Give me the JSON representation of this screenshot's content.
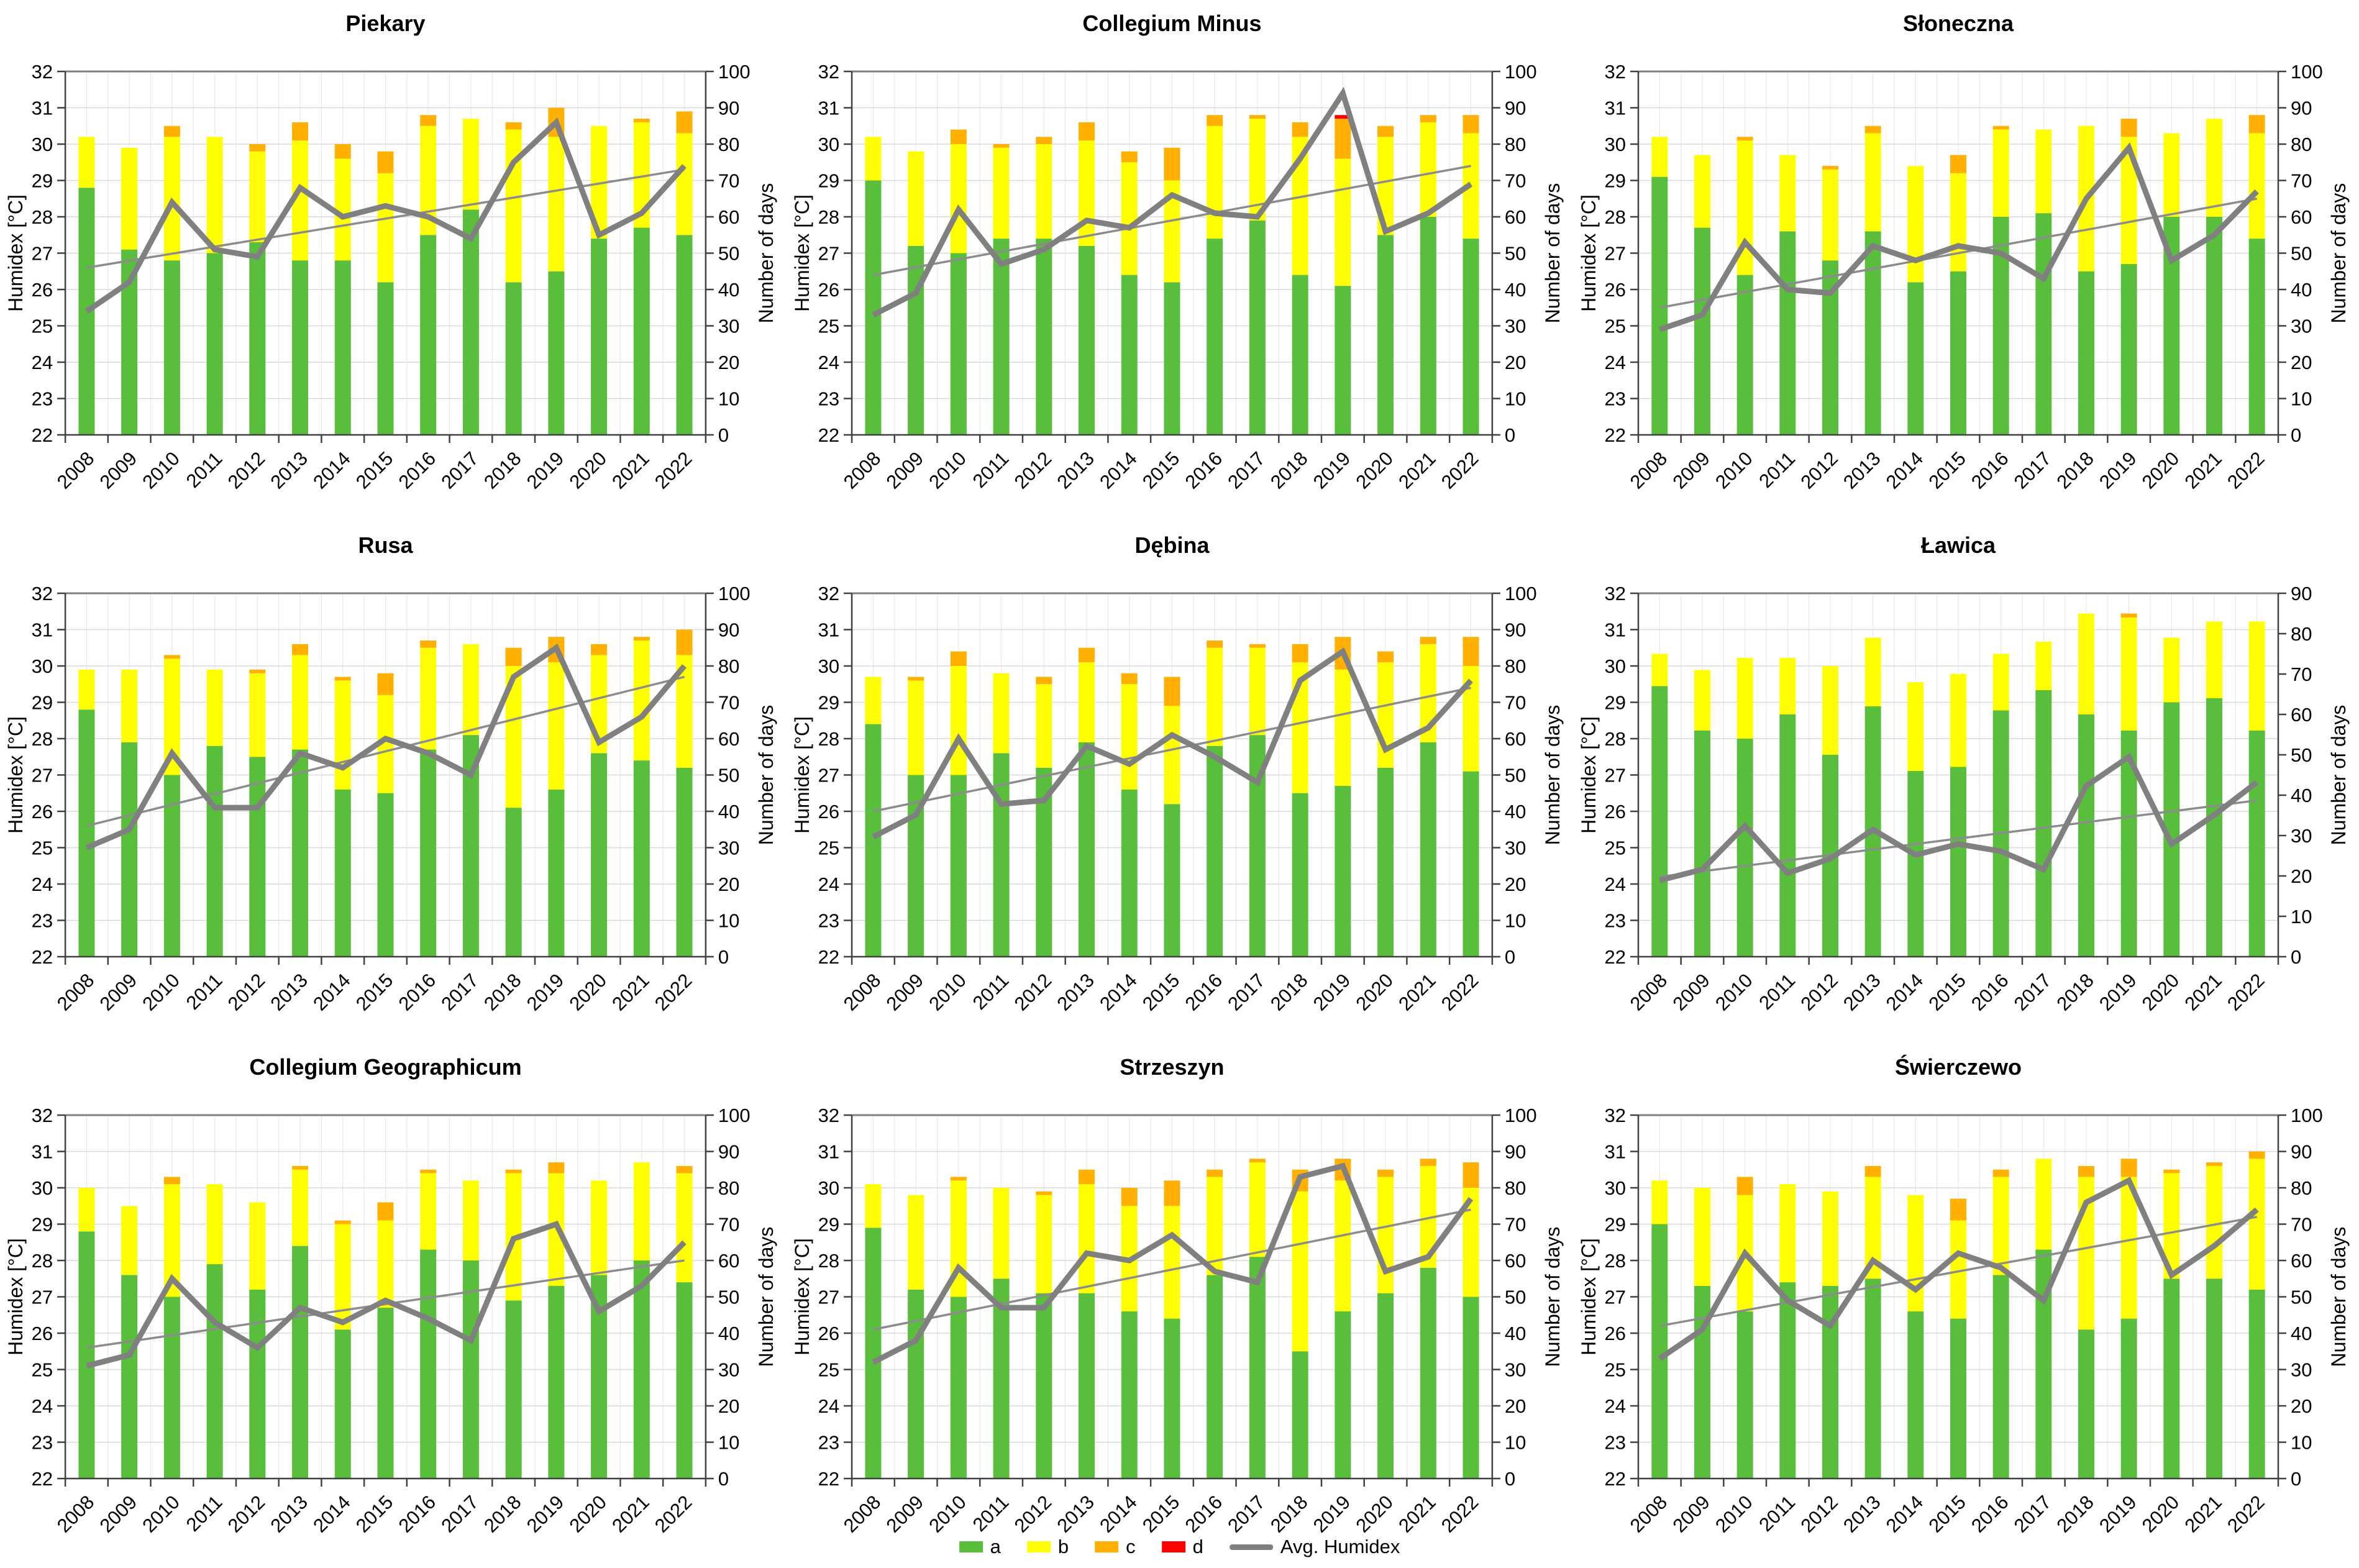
{
  "legend": {
    "items": [
      {
        "label": "a",
        "color": "#58be3c",
        "type": "box"
      },
      {
        "label": "b",
        "color": "#ffff00",
        "type": "box"
      },
      {
        "label": "c",
        "color": "#ffb000",
        "type": "box"
      },
      {
        "label": "d",
        "color": "#ff0000",
        "type": "box"
      },
      {
        "label": "Avg. Humidex",
        "color": "#808080",
        "type": "line"
      }
    ]
  },
  "colors": {
    "a": "#58be3c",
    "b": "#ffff00",
    "c": "#ffb000",
    "d": "#ff0000",
    "avg_line": "#808080",
    "trend_line": "#8c8c8c",
    "h_grid": "#d9d9d9",
    "v_grid": "#e8e8e8",
    "top_border": "#808080",
    "axis": "#404040",
    "text": "#000000"
  },
  "chart_data": [
    {
      "type": "bar",
      "title": "Piekary",
      "categories": [
        2008,
        2009,
        2010,
        2011,
        2012,
        2013,
        2014,
        2015,
        2016,
        2017,
        2018,
        2019,
        2020,
        2021,
        2022
      ],
      "xlabel": "",
      "ylabel_left": "Humidex [°C]",
      "ylabel_right": "Number of days",
      "ylim_left": [
        22,
        32
      ],
      "ylim_right": [
        0,
        100
      ],
      "grid": true,
      "series": [
        {
          "name": "a",
          "values": [
            68,
            51,
            48,
            50,
            53,
            48,
            48,
            42,
            55,
            62,
            42,
            45,
            54,
            57,
            55
          ]
        },
        {
          "name": "b",
          "values": [
            14,
            28,
            34,
            32,
            25,
            33,
            28,
            30,
            30,
            25,
            42,
            37,
            31,
            29,
            28
          ]
        },
        {
          "name": "c",
          "values": [
            0,
            0,
            3,
            0,
            2,
            5,
            4,
            6,
            3,
            0,
            2,
            8,
            0,
            1,
            6
          ]
        },
        {
          "name": "d",
          "values": [
            0,
            0,
            0,
            0,
            0,
            0,
            0,
            0,
            0,
            0,
            0,
            0,
            0,
            0,
            0
          ]
        }
      ],
      "avg_humidex": [
        25.4,
        26.2,
        28.4,
        27.1,
        26.9,
        28.8,
        28.0,
        28.3,
        28.0,
        27.4,
        29.5,
        30.6,
        27.5,
        28.1,
        29.4
      ],
      "trend_line": {
        "start": 26.6,
        "end": 29.3
      }
    },
    {
      "type": "bar",
      "title": "Collegium Minus",
      "categories": [
        2008,
        2009,
        2010,
        2011,
        2012,
        2013,
        2014,
        2015,
        2016,
        2017,
        2018,
        2019,
        2020,
        2021,
        2022
      ],
      "xlabel": "",
      "ylabel_left": "Humidex [°C]",
      "ylabel_right": "Number of days",
      "ylim_left": [
        22,
        32
      ],
      "ylim_right": [
        0,
        100
      ],
      "grid": true,
      "series": [
        {
          "name": "a",
          "values": [
            70,
            52,
            50,
            54,
            54,
            52,
            44,
            42,
            54,
            59,
            44,
            41,
            55,
            60,
            54
          ]
        },
        {
          "name": "b",
          "values": [
            12,
            26,
            30,
            25,
            26,
            29,
            31,
            28,
            31,
            28,
            38,
            35,
            27,
            26,
            29
          ]
        },
        {
          "name": "c",
          "values": [
            0,
            0,
            4,
            1,
            2,
            5,
            3,
            9,
            3,
            1,
            4,
            11,
            3,
            2,
            5
          ]
        },
        {
          "name": "d",
          "values": [
            0,
            0,
            0,
            0,
            0,
            0,
            0,
            0,
            0,
            0,
            0,
            1,
            0,
            0,
            0
          ]
        }
      ],
      "avg_humidex": [
        25.3,
        25.9,
        28.2,
        26.7,
        27.1,
        27.9,
        27.7,
        28.6,
        28.1,
        28.0,
        29.6,
        31.4,
        27.6,
        28.1,
        28.9
      ],
      "trend_line": {
        "start": 26.4,
        "end": 29.4
      }
    },
    {
      "type": "bar",
      "title": "Słoneczna",
      "categories": [
        2008,
        2009,
        2010,
        2011,
        2012,
        2013,
        2014,
        2015,
        2016,
        2017,
        2018,
        2019,
        2020,
        2021,
        2022
      ],
      "xlabel": "",
      "ylabel_left": "Humidex [°C]",
      "ylabel_right": "Number of days",
      "ylim_left": [
        22,
        32
      ],
      "ylim_right": [
        0,
        100
      ],
      "grid": true,
      "series": [
        {
          "name": "a",
          "values": [
            71,
            57,
            44,
            56,
            48,
            56,
            42,
            45,
            60,
            61,
            45,
            47,
            60,
            60,
            54
          ]
        },
        {
          "name": "b",
          "values": [
            11,
            20,
            37,
            21,
            25,
            27,
            32,
            27,
            24,
            23,
            40,
            35,
            23,
            27,
            29
          ]
        },
        {
          "name": "c",
          "values": [
            0,
            0,
            1,
            0,
            1,
            2,
            0,
            5,
            1,
            0,
            0,
            5,
            0,
            0,
            5
          ]
        },
        {
          "name": "d",
          "values": [
            0,
            0,
            0,
            0,
            0,
            0,
            0,
            0,
            0,
            0,
            0,
            0,
            0,
            0,
            0
          ]
        }
      ],
      "avg_humidex": [
        24.9,
        25.3,
        27.3,
        26.0,
        25.9,
        27.2,
        26.8,
        27.2,
        27.0,
        26.3,
        28.5,
        29.9,
        26.8,
        27.5,
        28.7
      ],
      "trend_line": {
        "start": 25.5,
        "end": 28.5
      }
    },
    {
      "type": "bar",
      "title": "Rusa",
      "categories": [
        2008,
        2009,
        2010,
        2011,
        2012,
        2013,
        2014,
        2015,
        2016,
        2017,
        2018,
        2019,
        2020,
        2021,
        2022
      ],
      "xlabel": "",
      "ylabel_left": "Humidex [°C]",
      "ylabel_right": "Number of days",
      "ylim_left": [
        22,
        32
      ],
      "ylim_right": [
        0,
        100
      ],
      "grid": true,
      "series": [
        {
          "name": "a",
          "values": [
            68,
            59,
            50,
            58,
            55,
            57,
            46,
            45,
            57,
            61,
            41,
            46,
            56,
            54,
            52
          ]
        },
        {
          "name": "b",
          "values": [
            11,
            20,
            32,
            21,
            23,
            26,
            30,
            27,
            28,
            25,
            39,
            35,
            27,
            33,
            31
          ]
        },
        {
          "name": "c",
          "values": [
            0,
            0,
            1,
            0,
            1,
            3,
            1,
            6,
            2,
            0,
            5,
            7,
            3,
            1,
            7
          ]
        },
        {
          "name": "d",
          "values": [
            0,
            0,
            0,
            0,
            0,
            0,
            0,
            0,
            0,
            0,
            0,
            0,
            0,
            0,
            0
          ]
        }
      ],
      "avg_humidex": [
        25.0,
        25.5,
        27.6,
        26.1,
        26.1,
        27.6,
        27.2,
        28.0,
        27.6,
        27.0,
        29.7,
        30.5,
        27.9,
        28.6,
        30.0
      ],
      "trend_line": {
        "start": 25.6,
        "end": 29.7
      }
    },
    {
      "type": "bar",
      "title": "Dębina",
      "categories": [
        2008,
        2009,
        2010,
        2011,
        2012,
        2013,
        2014,
        2015,
        2016,
        2017,
        2018,
        2019,
        2020,
        2021,
        2022
      ],
      "xlabel": "",
      "ylabel_left": "Humidex [°C]",
      "ylabel_right": "Number of days",
      "ylim_left": [
        22,
        32
      ],
      "ylim_right": [
        0,
        100
      ],
      "grid": true,
      "series": [
        {
          "name": "a",
          "values": [
            64,
            50,
            50,
            56,
            52,
            59,
            46,
            42,
            58,
            61,
            45,
            47,
            52,
            59,
            51
          ]
        },
        {
          "name": "b",
          "values": [
            13,
            26,
            30,
            22,
            23,
            22,
            29,
            27,
            27,
            24,
            36,
            32,
            29,
            27,
            29
          ]
        },
        {
          "name": "c",
          "values": [
            0,
            1,
            4,
            0,
            2,
            4,
            3,
            8,
            2,
            1,
            5,
            9,
            3,
            2,
            8
          ]
        },
        {
          "name": "d",
          "values": [
            0,
            0,
            0,
            0,
            0,
            0,
            0,
            0,
            0,
            0,
            0,
            0,
            0,
            0,
            0
          ]
        }
      ],
      "avg_humidex": [
        25.3,
        25.9,
        28.0,
        26.2,
        26.3,
        27.8,
        27.3,
        28.1,
        27.5,
        26.8,
        29.6,
        30.4,
        27.7,
        28.3,
        29.6
      ],
      "trend_line": {
        "start": 26.0,
        "end": 29.4
      }
    },
    {
      "type": "bar",
      "title": "Ławica",
      "categories": [
        2008,
        2009,
        2010,
        2011,
        2012,
        2013,
        2014,
        2015,
        2016,
        2017,
        2018,
        2019,
        2020,
        2021,
        2022
      ],
      "xlabel": "",
      "ylabel_left": "Humidex [°C]",
      "ylabel_right": "Number of days",
      "ylim_left": [
        22,
        32
      ],
      "ylim_right": [
        0,
        90
      ],
      "grid": true,
      "series": [
        {
          "name": "a",
          "values": [
            67,
            56,
            54,
            60,
            50,
            62,
            46,
            47,
            61,
            66,
            60,
            56,
            63,
            64,
            56
          ]
        },
        {
          "name": "b",
          "values": [
            8,
            15,
            20,
            14,
            22,
            17,
            22,
            23,
            14,
            12,
            25,
            28,
            16,
            19,
            27
          ]
        },
        {
          "name": "c",
          "values": [
            0,
            0,
            0,
            0,
            0,
            0,
            0,
            0,
            0,
            0,
            0,
            1,
            0,
            0,
            0
          ]
        },
        {
          "name": "d",
          "values": [
            0,
            0,
            0,
            0,
            0,
            0,
            0,
            0,
            0,
            0,
            0,
            0,
            0,
            0,
            0
          ]
        }
      ],
      "avg_humidex": [
        24.1,
        24.4,
        25.6,
        24.3,
        24.7,
        25.5,
        24.8,
        25.1,
        24.9,
        24.4,
        26.7,
        27.5,
        25.1,
        25.9,
        26.8
      ],
      "trend_line": {
        "start": 24.2,
        "end": 26.3
      }
    },
    {
      "type": "bar",
      "title": "Collegium Geographicum",
      "categories": [
        2008,
        2009,
        2010,
        2011,
        2012,
        2013,
        2014,
        2015,
        2016,
        2017,
        2018,
        2019,
        2020,
        2021,
        2022
      ],
      "xlabel": "",
      "ylabel_left": "Humidex [°C]",
      "ylabel_right": "Number of days",
      "ylim_left": [
        22,
        32
      ],
      "ylim_right": [
        0,
        100
      ],
      "grid": true,
      "series": [
        {
          "name": "a",
          "values": [
            68,
            56,
            50,
            59,
            52,
            64,
            41,
            47,
            63,
            60,
            49,
            53,
            56,
            60,
            54
          ]
        },
        {
          "name": "b",
          "values": [
            12,
            19,
            31,
            22,
            24,
            21,
            29,
            24,
            21,
            22,
            35,
            31,
            26,
            27,
            30
          ]
        },
        {
          "name": "c",
          "values": [
            0,
            0,
            2,
            0,
            0,
            1,
            1,
            5,
            1,
            0,
            1,
            3,
            0,
            0,
            2
          ]
        },
        {
          "name": "d",
          "values": [
            0,
            0,
            0,
            0,
            0,
            0,
            0,
            0,
            0,
            0,
            0,
            0,
            0,
            0,
            0
          ]
        }
      ],
      "avg_humidex": [
        25.1,
        25.4,
        27.5,
        26.3,
        25.6,
        26.7,
        26.3,
        26.9,
        26.4,
        25.8,
        28.6,
        29.0,
        26.6,
        27.3,
        28.5
      ],
      "trend_line": {
        "start": 25.6,
        "end": 28.0
      }
    },
    {
      "type": "bar",
      "title": "Strzeszyn",
      "categories": [
        2008,
        2009,
        2010,
        2011,
        2012,
        2013,
        2014,
        2015,
        2016,
        2017,
        2018,
        2019,
        2020,
        2021,
        2022
      ],
      "xlabel": "",
      "ylabel_left": "Humidex [°C]",
      "ylabel_right": "Number of days",
      "ylim_left": [
        22,
        32
      ],
      "ylim_right": [
        0,
        100
      ],
      "grid": true,
      "series": [
        {
          "name": "a",
          "values": [
            69,
            52,
            50,
            55,
            51,
            51,
            46,
            44,
            56,
            61,
            35,
            46,
            51,
            58,
            50
          ]
        },
        {
          "name": "b",
          "values": [
            12,
            26,
            32,
            25,
            27,
            30,
            29,
            31,
            27,
            26,
            44,
            36,
            32,
            28,
            30
          ]
        },
        {
          "name": "c",
          "values": [
            0,
            0,
            1,
            0,
            1,
            4,
            5,
            7,
            2,
            1,
            6,
            6,
            2,
            2,
            7
          ]
        },
        {
          "name": "d",
          "values": [
            0,
            0,
            0,
            0,
            0,
            0,
            0,
            0,
            0,
            0,
            0,
            0,
            0,
            0,
            0
          ]
        }
      ],
      "avg_humidex": [
        25.2,
        25.8,
        27.8,
        26.7,
        26.7,
        28.2,
        28.0,
        28.7,
        27.7,
        27.4,
        30.3,
        30.6,
        27.7,
        28.1,
        29.7
      ],
      "trend_line": {
        "start": 26.1,
        "end": 29.4
      }
    },
    {
      "type": "bar",
      "title": "Świerczewo",
      "categories": [
        2008,
        2009,
        2010,
        2011,
        2012,
        2013,
        2014,
        2015,
        2016,
        2017,
        2018,
        2019,
        2020,
        2021,
        2022
      ],
      "xlabel": "",
      "ylabel_left": "Humidex [°C]",
      "ylabel_right": "Number of days",
      "ylim_left": [
        22,
        32
      ],
      "ylim_right": [
        0,
        100
      ],
      "grid": true,
      "series": [
        {
          "name": "a",
          "values": [
            70,
            53,
            46,
            54,
            53,
            55,
            46,
            44,
            56,
            63,
            41,
            44,
            55,
            55,
            52
          ]
        },
        {
          "name": "b",
          "values": [
            12,
            27,
            32,
            27,
            26,
            28,
            32,
            27,
            27,
            25,
            42,
            39,
            29,
            31,
            36
          ]
        },
        {
          "name": "c",
          "values": [
            0,
            0,
            5,
            0,
            0,
            3,
            0,
            6,
            2,
            0,
            3,
            5,
            1,
            1,
            2
          ]
        },
        {
          "name": "d",
          "values": [
            0,
            0,
            0,
            0,
            0,
            0,
            0,
            0,
            0,
            0,
            0,
            0,
            0,
            0,
            0
          ]
        }
      ],
      "avg_humidex": [
        25.3,
        26.1,
        28.2,
        26.9,
        26.2,
        28.0,
        27.2,
        28.2,
        27.8,
        26.9,
        29.6,
        30.2,
        27.6,
        28.4,
        29.4
      ],
      "trend_line": {
        "start": 26.2,
        "end": 29.2
      }
    }
  ]
}
